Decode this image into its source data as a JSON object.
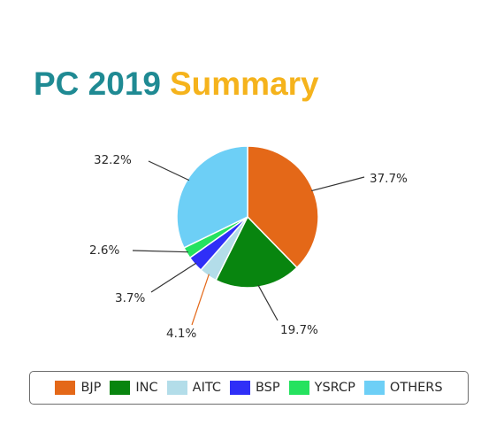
{
  "title": {
    "part1": "PC 2019",
    "part2": "Summary"
  },
  "chart_data": {
    "type": "pie",
    "title": "PC 2019 Summary",
    "legend_position": "bottom",
    "slices": [
      {
        "label": "BJP",
        "value": 37.7,
        "display": "37.7%",
        "color": "#e46818"
      },
      {
        "label": "INC",
        "value": 19.7,
        "display": "19.7%",
        "color": "#08850f"
      },
      {
        "label": "AITC",
        "value": 4.1,
        "display": "4.1%",
        "color": "#b3dde9"
      },
      {
        "label": "BSP",
        "value": 3.7,
        "display": "3.7%",
        "color": "#2f2ff7"
      },
      {
        "label": "YSRCP",
        "value": 2.6,
        "display": "2.6%",
        "color": "#25e25f"
      },
      {
        "label": "OTHERS",
        "value": 32.2,
        "display": "32.2%",
        "color": "#6dcff6"
      }
    ],
    "aitc_leader_color": "#e46818"
  }
}
